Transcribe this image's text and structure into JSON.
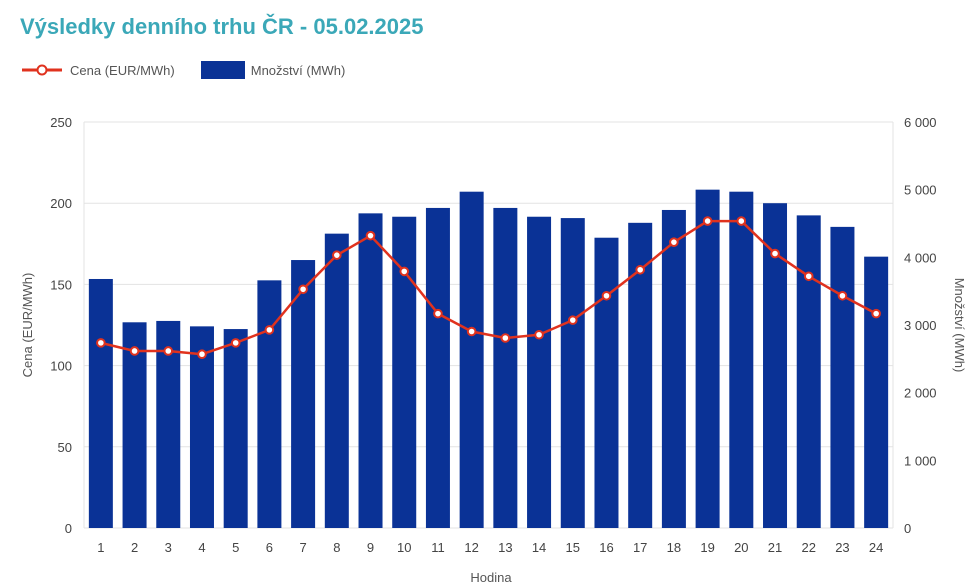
{
  "header": {
    "title": "Výsledky denního trhu ČR - 05.02.2025"
  },
  "legend": {
    "price_label": "Cena (EUR/MWh)",
    "quantity_label": "Množství (MWh)"
  },
  "colors": {
    "title": "#3ba8b8",
    "bars": "#0a3296",
    "line": "#e0321e",
    "grid": "#e3e3e3"
  },
  "chart_data": {
    "type": "bar+line",
    "xlabel": "Hodina",
    "ylabel_left": "Cena (EUR/MWh)",
    "ylabel_right": "Množství (MWh)",
    "categories": [
      "1",
      "2",
      "3",
      "4",
      "5",
      "6",
      "7",
      "8",
      "9",
      "10",
      "11",
      "12",
      "13",
      "14",
      "15",
      "16",
      "17",
      "18",
      "19",
      "20",
      "21",
      "22",
      "23",
      "24"
    ],
    "ylim_left": [
      0,
      250
    ],
    "ylim_right": [
      0,
      6000
    ],
    "yticks_left": [
      "0",
      "50",
      "100",
      "150",
      "200",
      "250"
    ],
    "yticks_right": [
      "0",
      "1 000",
      "2 000",
      "3 000",
      "4 000",
      "5 000",
      "6 000"
    ],
    "grid": true,
    "legend_position": "top-left",
    "series": [
      {
        "name": "Množství (MWh)",
        "type": "bar",
        "axis": "right",
        "values": [
          3680,
          3040,
          3060,
          2980,
          2940,
          3660,
          3960,
          4350,
          4650,
          4600,
          4730,
          4970,
          4730,
          4600,
          4580,
          4290,
          4510,
          4700,
          5000,
          4970,
          4800,
          4620,
          4450,
          4010
        ]
      },
      {
        "name": "Cena (EUR/MWh)",
        "type": "line",
        "axis": "left",
        "values": [
          114,
          109,
          109,
          107,
          114,
          122,
          147,
          168,
          180,
          158,
          132,
          121,
          117,
          119,
          128,
          143,
          159,
          176,
          189,
          189,
          169,
          155,
          143,
          132
        ]
      }
    ]
  }
}
